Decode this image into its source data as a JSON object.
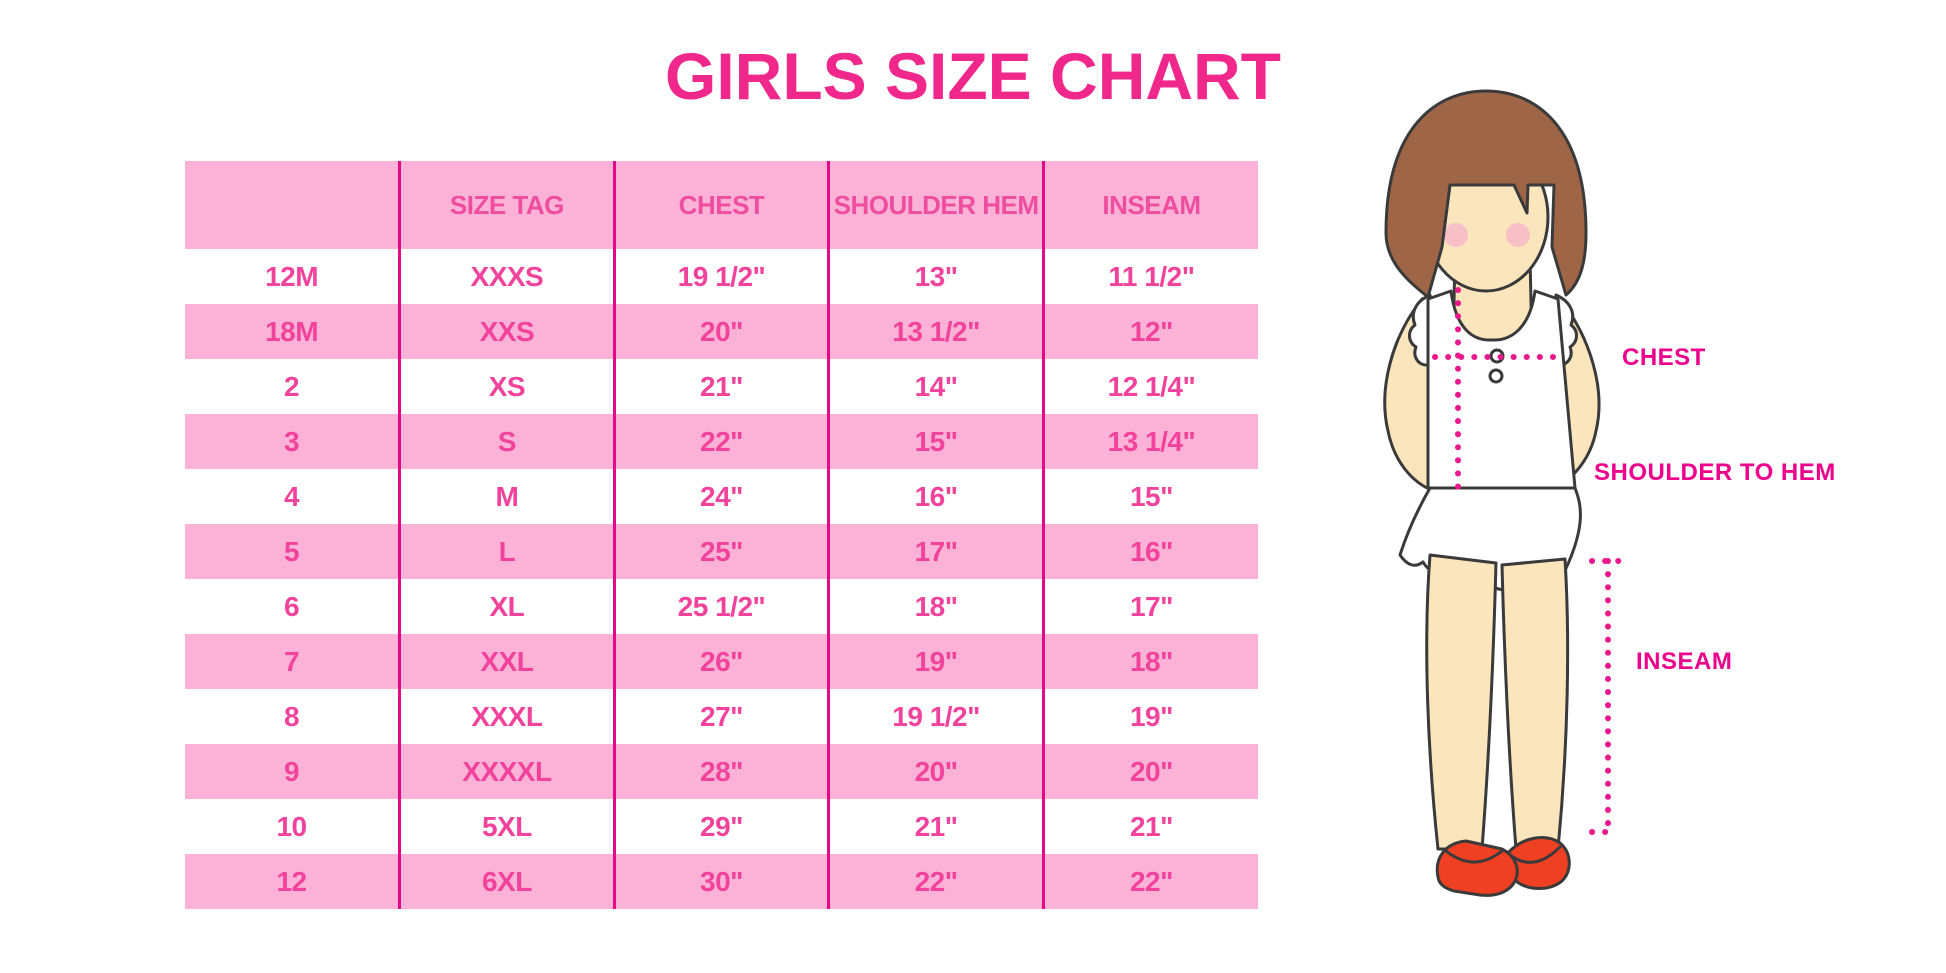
{
  "chart_data": {
    "type": "table",
    "title": "GIRLS SIZE CHART",
    "columns": [
      "",
      "SIZE TAG",
      "CHEST",
      "SHOULDER HEM",
      "INSEAM"
    ],
    "rows": [
      [
        "12M",
        "XXXS",
        "19 1/2\"",
        "13\"",
        "11 1/2\""
      ],
      [
        "18M",
        "XXS",
        "20\"",
        "13 1/2\"",
        "12\""
      ],
      [
        "2",
        "XS",
        "21\"",
        "14\"",
        "12 1/4\""
      ],
      [
        "3",
        "S",
        "22\"",
        "15\"",
        "13 1/4\""
      ],
      [
        "4",
        "M",
        "24\"",
        "16\"",
        "15\""
      ],
      [
        "5",
        "L",
        "25\"",
        "17\"",
        "16\""
      ],
      [
        "6",
        "XL",
        "25 1/2\"",
        "18\"",
        "17\""
      ],
      [
        "7",
        "XXL",
        "26\"",
        "19\"",
        "18\""
      ],
      [
        "8",
        "XXXL",
        "27\"",
        "19 1/2\"",
        "19\""
      ],
      [
        "9",
        "XXXXL",
        "28\"",
        "20\"",
        "20\""
      ],
      [
        "10",
        "5XL",
        "29\"",
        "21\"",
        "21\""
      ],
      [
        "12",
        "6XL",
        "30\"",
        "22\"",
        "22\""
      ]
    ],
    "annotations": {
      "chest": "CHEST",
      "shoulder_to_hem": "SHOULDER TO HEM",
      "inseam": "INSEAM"
    },
    "layout_hints": {
      "row_striping": [
        "white",
        "pink"
      ],
      "grid": "vertical-separators-only"
    }
  },
  "colors": {
    "title_pink": "#f0288c",
    "band_pink": "#fcb2d6",
    "separator_magenta": "#e40984",
    "table_text_pink": "#f2439c",
    "label_magenta": "#ec008c",
    "dotted_line_magenta": "#ea1a8c",
    "hair_brown": "#9e6647",
    "skin": "#fbe5bc",
    "shoe_red": "#ef4023"
  }
}
